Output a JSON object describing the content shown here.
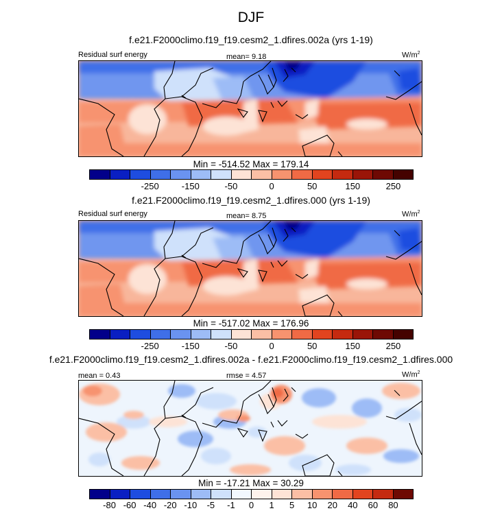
{
  "season": "DJF",
  "panels": [
    {
      "title": "f.e21.F2000climo.f19_f19.cesm2_1.dfires.002a (yrs 1-19)",
      "left_label": "Residual surf energy",
      "center_label": "mean=   9.18",
      "units": "W/m",
      "units_sup": "2",
      "minmax": "Min = -514.52 Max = 179.14",
      "ticks": [
        "-250",
        "-150",
        "-50",
        "0",
        "50",
        "150",
        "250"
      ]
    },
    {
      "title": "f.e21.F2000climo.f19_f19.cesm2_1.dfires.000 (yrs 1-19)",
      "left_label": "Residual surf energy",
      "center_label": "mean=   8.75",
      "units": "W/m",
      "units_sup": "2",
      "minmax": "Min = -517.02 Max = 176.96",
      "ticks": [
        "-250",
        "-150",
        "-50",
        "0",
        "50",
        "150",
        "250"
      ]
    },
    {
      "title": "f.e21.F2000climo.f19_f19.cesm2_1.dfires.002a - f.e21.F2000climo.f19_f19.cesm2_1.dfires.000",
      "left_label": "mean =   0.43",
      "center_label": "rmse =   4.57",
      "units": "W/m",
      "units_sup": "2",
      "minmax": "Min = -17.21 Max = 30.29",
      "ticks": [
        "-80",
        "-60",
        "-40",
        "-20",
        "-10",
        "-5",
        "-1",
        "0",
        "1",
        "5",
        "10",
        "20",
        "40",
        "60",
        "80"
      ]
    }
  ],
  "colors": {
    "bar_a": [
      "#02008a",
      "#0a1fc2",
      "#1e4de0",
      "#3f6fe8",
      "#6a93f0",
      "#9dbcf6",
      "#cfe1fb",
      "#fde3d6",
      "#fbbfa5",
      "#f7936f",
      "#f06a45",
      "#e2441f",
      "#c52a10",
      "#9a1508",
      "#6e0903",
      "#450200"
    ],
    "bar_b": [
      "#02008a",
      "#0a1fc2",
      "#1e4de0",
      "#3f6fe8",
      "#6a93f0",
      "#9dbcf6",
      "#cfe1fb",
      "#f2f8fe",
      "#fdf2ec",
      "#fde3d6",
      "#fbbfa5",
      "#f7936f",
      "#f06a45",
      "#e2441f",
      "#c52a10",
      "#6e0903"
    ]
  }
}
